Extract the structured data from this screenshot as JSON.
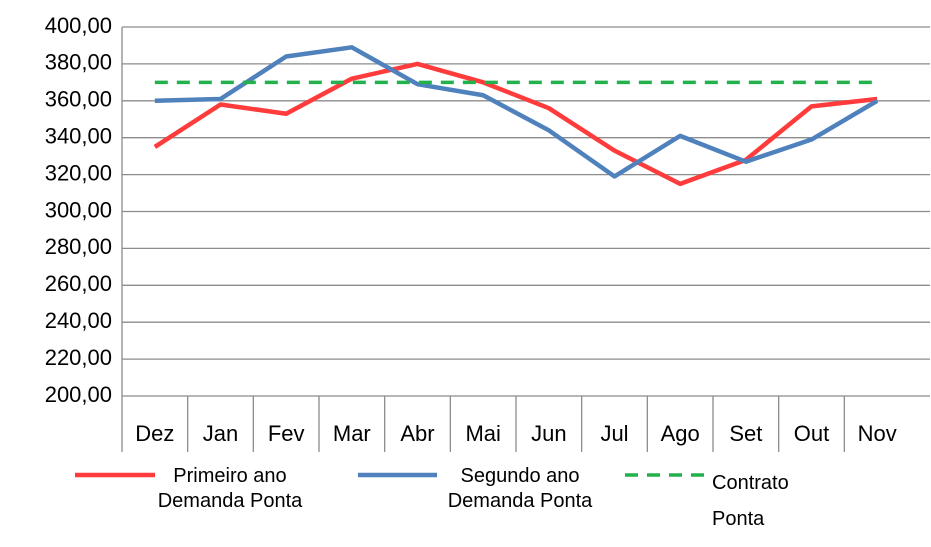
{
  "chart_data": {
    "type": "line",
    "categories": [
      "Dez",
      "Jan",
      "Fev",
      "Mar",
      "Abr",
      "Mai",
      "Jun",
      "Jul",
      "Ago",
      "Set",
      "Out",
      "Nov"
    ],
    "series": [
      {
        "name": "Primeiro ano Demanda Ponta",
        "color": "#ff3b3b",
        "dashed": false,
        "values": [
          335,
          358,
          353,
          372,
          380,
          370,
          356,
          333,
          315,
          328,
          357,
          361
        ]
      },
      {
        "name": "Segundo ano Demanda Ponta",
        "color": "#4f81bd",
        "dashed": false,
        "values": [
          360,
          361,
          384,
          389,
          369,
          363,
          344,
          319,
          341,
          327,
          339,
          360
        ]
      },
      {
        "name": "Contrato Ponta",
        "color": "#22b14c",
        "dashed": true,
        "values": [
          370,
          370,
          370,
          370,
          370,
          370,
          370,
          370,
          370,
          370,
          370,
          370
        ]
      }
    ],
    "ylim": [
      200,
      400
    ],
    "yticks": [
      {
        "value": 200,
        "label": "200,00"
      },
      {
        "value": 220,
        "label": "220,00"
      },
      {
        "value": 240,
        "label": "240,00"
      },
      {
        "value": 260,
        "label": "260,00"
      },
      {
        "value": 280,
        "label": "280,00"
      },
      {
        "value": 300,
        "label": "300,00"
      },
      {
        "value": 320,
        "label": "320,00"
      },
      {
        "value": 340,
        "label": "340,00"
      },
      {
        "value": 360,
        "label": "360,00"
      },
      {
        "value": 380,
        "label": "380,00"
      },
      {
        "value": 400,
        "label": "400,00"
      }
    ],
    "grid": true
  }
}
